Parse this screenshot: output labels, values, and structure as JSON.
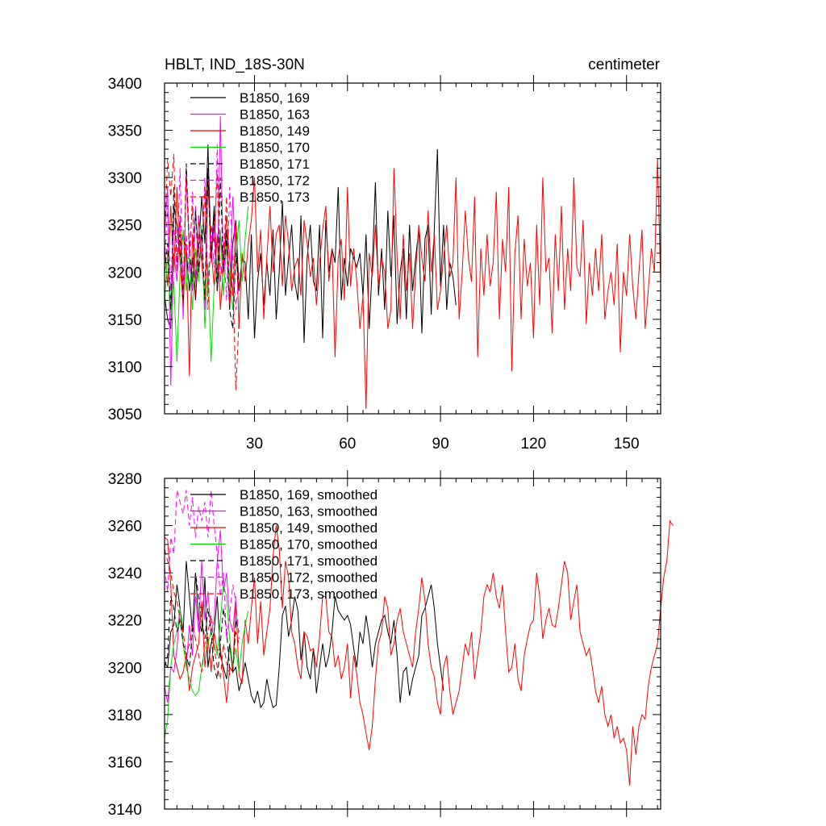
{
  "chart_data": [
    {
      "type": "line",
      "title": "HBLT, IND_18S-30N",
      "units": "centimeter",
      "xlabel": "",
      "ylabel": "",
      "xlim": [
        1,
        161
      ],
      "ylim": [
        3050,
        3400
      ],
      "x_ticks": [
        30,
        60,
        90,
        120,
        150
      ],
      "x_tick_labels": [
        "30",
        "60",
        "90",
        "120",
        "150"
      ],
      "y_ticks": [
        3050,
        3100,
        3150,
        3200,
        3250,
        3300,
        3350,
        3400
      ],
      "y_tick_labels": [
        "3050",
        "3100",
        "3150",
        "3200",
        "3250",
        "3300",
        "3350",
        "3400"
      ],
      "legend_position": "top-left",
      "series": [
        {
          "name": "B1850, 169",
          "label": "B1850, 169",
          "color": "#000000",
          "dash": "solid",
          "values": [
            3175,
            3150,
            3140,
            3270,
            3250,
            3215,
            3240,
            3225,
            3180,
            3215,
            3170,
            3225,
            3280,
            3230,
            3335,
            3215,
            3270,
            3180,
            3240,
            3210,
            3245,
            3160,
            3230,
            3255,
            3180,
            3215,
            3210,
            3150,
            3240,
            3130,
            3190,
            3220,
            3165,
            3210,
            3175,
            3245,
            3150,
            3200,
            3275,
            3175,
            3215,
            3250,
            3190,
            3170,
            3260,
            3125,
            3215,
            3250,
            3190,
            3180,
            3250,
            3130,
            3255,
            3200,
            3225,
            3210,
            3290,
            3170,
            3215,
            3185,
            3225,
            3215,
            3205,
            3220,
            3175,
            3240,
            3140,
            3205,
            3295,
            3175,
            3225,
            3160,
            3265,
            3195,
            3260,
            3145,
            3200,
            3225,
            3150,
            3250,
            3180,
            3215,
            3245,
            3135,
            3235,
            3250,
            3155,
            3245,
            3330,
            3185,
            3250,
            3160,
            3210,
            3195,
            3165
          ]
        },
        {
          "name": "B1850, 163",
          "label": "B1850, 163",
          "color": "#ff00ff",
          "dash": "solid",
          "values": [
            3240,
            3290,
            3080,
            3220,
            3190,
            3260,
            3150,
            3310,
            3220,
            3180,
            3270,
            3200,
            3240,
            3160,
            3300,
            3210,
            3250,
            3180,
            3365,
            3200,
            3230,
            3170,
            3280,
            3210
          ]
        },
        {
          "name": "B1850, 149",
          "label": "B1850, 149",
          "color": "#ff0000",
          "dash": "solid",
          "values": [
            3230,
            3185,
            3270,
            3200,
            3290,
            3210,
            3165,
            3230,
            3090,
            3240,
            3190,
            3260,
            3210,
            3170,
            3300,
            3225,
            3185,
            3240,
            3160,
            3205,
            3260,
            3215,
            3175,
            3250,
            3140,
            3220,
            3190,
            3230,
            3255,
            3300,
            3200,
            3245,
            3150,
            3215,
            3270,
            3200,
            3240,
            3250,
            3185,
            3260,
            3230,
            3180,
            3205,
            3215,
            3175,
            3255,
            3230,
            3195,
            3215,
            3165,
            3210,
            3245,
            3270,
            3190,
            3225,
            3110,
            3215,
            3235,
            3170,
            3290,
            3185,
            3225,
            3190,
            3140,
            3175,
            3055,
            3220,
            3195,
            3250,
            3185,
            3215,
            3200,
            3140,
            3160,
            3310,
            3215,
            3150,
            3240,
            3180,
            3220,
            3140,
            3200,
            3250,
            3215,
            3190,
            3265,
            3200,
            3240,
            3160,
            3180,
            3215,
            3250,
            3195,
            3210,
            3300,
            3150,
            3200,
            3265,
            3215,
            3190,
            3280,
            3110,
            3225,
            3175,
            3240,
            3185,
            3210,
            3285,
            3150,
            3235,
            3200,
            3290,
            3095,
            3220,
            3260,
            3150,
            3235,
            3185,
            3210,
            3130,
            3250,
            3165,
            3300,
            3200,
            3215,
            3135,
            3240,
            3180,
            3270,
            3160,
            3225,
            3180,
            3300,
            3205,
            3195,
            3255,
            3145,
            3210,
            3175,
            3225,
            3180,
            3240,
            3150,
            3180,
            3200,
            3165,
            3230,
            3115,
            3200,
            3175,
            3240,
            3185,
            3150,
            3200,
            3245,
            3140,
            3180,
            3225,
            3200,
            3320,
            3190
          ]
        },
        {
          "name": "B1850, 170",
          "label": "B1850, 170",
          "color": "#00dd00",
          "dash": "solid",
          "values": [
            3165,
            3220,
            3155,
            3190,
            3105,
            3200,
            3245,
            3180,
            3215,
            3160,
            3225,
            3190,
            3250,
            3140,
            3210,
            3105,
            3185,
            3200,
            3245,
            3175,
            3230,
            3195,
            3160,
            3215,
            3255,
            3190,
            3235,
            3270
          ]
        },
        {
          "name": "B1850, 171",
          "label": "B1850, 171",
          "color": "#000000",
          "dash": "dashed",
          "values": [
            3200,
            3230,
            3160,
            3290,
            3210,
            3240,
            3170,
            3315,
            3225,
            3190,
            3265,
            3200,
            3245,
            3170,
            3310,
            3215,
            3260,
            3180,
            3300,
            3200,
            3235,
            3160,
            3140,
            3220,
            3180
          ]
        },
        {
          "name": "B1850, 172",
          "label": "B1850, 172",
          "color": "#ff00ff",
          "dash": "dashed",
          "values": [
            3210,
            3270,
            3180,
            3250,
            3200,
            3310,
            3175,
            3240,
            3200,
            3285,
            3190,
            3260,
            3215,
            3300,
            3180,
            3245,
            3205,
            3335,
            3190,
            3230,
            3170,
            3290,
            3215,
            3160,
            3200
          ]
        },
        {
          "name": "B1850, 173",
          "label": "B1850, 173",
          "color": "#ff0000",
          "dash": "dashed",
          "values": [
            3240,
            3320,
            3280,
            3325,
            3200,
            3260,
            3180,
            3300,
            3220,
            3270,
            3175,
            3240,
            3210,
            3290,
            3160,
            3250,
            3230,
            3305,
            3190,
            3215,
            3280,
            3165,
            3200,
            3075,
            3150
          ]
        }
      ]
    },
    {
      "type": "line",
      "title": "",
      "xlabel": "",
      "ylabel": "",
      "xlim": [
        1,
        161
      ],
      "ylim": [
        3140,
        3280
      ],
      "x_ticks": [
        30,
        60,
        90,
        120,
        150
      ],
      "x_tick_labels": [],
      "y_ticks": [
        3140,
        3160,
        3180,
        3200,
        3220,
        3240,
        3260,
        3280
      ],
      "y_tick_labels": [
        "3140",
        "3160",
        "3180",
        "3200",
        "3220",
        "3240",
        "3260",
        "3280"
      ],
      "legend_position": "top-left",
      "series": [
        {
          "name": "B1850, 169, smoothed",
          "label": "B1850, 169, smoothed",
          "color": "#000000",
          "dash": "solid",
          "values": [
            3202,
            3200,
            3215,
            3218,
            3235,
            3225,
            3215,
            3245,
            3230,
            3215,
            3240,
            3220,
            3215,
            3238,
            3200,
            3210,
            3215,
            3230,
            3205,
            3200,
            3195,
            3210,
            3198,
            3200,
            3190,
            3195,
            3202,
            3195,
            3188,
            3185,
            3190,
            3183,
            3185,
            3195,
            3188,
            3183,
            3184,
            3200,
            3222,
            3226,
            3213,
            3220,
            3230,
            3224,
            3203,
            3215,
            3200,
            3195,
            3208,
            3189,
            3200,
            3210,
            3200,
            3205,
            3215,
            3230,
            3224,
            3222,
            3220,
            3222,
            3218,
            3208,
            3200,
            3215,
            3210,
            3222,
            3213,
            3200,
            3210,
            3215,
            3220,
            3222,
            3215,
            3210,
            3220,
            3205,
            3185,
            3198,
            3200,
            3188,
            3195,
            3200,
            3205,
            3222,
            3225,
            3230,
            3235,
            3225,
            3210,
            3200,
            3190
          ]
        },
        {
          "name": "B1850, 163, smoothed",
          "label": "B1850, 163, smoothed",
          "color": "#ff00ff",
          "dash": "solid",
          "values": [
            3192,
            3185,
            3200,
            3198,
            3208,
            3225,
            3210,
            3200,
            3218,
            3205,
            3230,
            3215,
            3245,
            3220,
            3232,
            3215,
            3220,
            3245,
            3258,
            3232,
            3240,
            3220,
            3215,
            3230
          ]
        },
        {
          "name": "B1850, 149, smoothed",
          "label": "B1850, 149, smoothed",
          "color": "#ff0000",
          "dash": "solid",
          "values": [
            3255,
            3254,
            3235,
            3205,
            3200,
            3195,
            3198,
            3205,
            3190,
            3200,
            3205,
            3210,
            3228,
            3200,
            3213,
            3198,
            3215,
            3207,
            3208,
            3197,
            3185,
            3200,
            3198,
            3228,
            3197,
            3193,
            3220,
            3210,
            3225,
            3238,
            3210,
            3228,
            3205,
            3215,
            3225,
            3247,
            3260,
            3250,
            3225,
            3245,
            3238,
            3215,
            3210,
            3200,
            3195,
            3215,
            3213,
            3207,
            3208,
            3200,
            3213,
            3230,
            3230,
            3215,
            3213,
            3200,
            3205,
            3195,
            3200,
            3210,
            3187,
            3205,
            3197,
            3185,
            3180,
            3172,
            3165,
            3175,
            3195,
            3210,
            3215,
            3230,
            3225,
            3205,
            3210,
            3220,
            3225,
            3215,
            3210,
            3205,
            3200,
            3215,
            3225,
            3238,
            3228,
            3210,
            3200,
            3196,
            3185,
            3180,
            3200,
            3205,
            3190,
            3180,
            3185,
            3190,
            3200,
            3210,
            3205,
            3215,
            3195,
            3205,
            3215,
            3230,
            3235,
            3232,
            3240,
            3230,
            3225,
            3235,
            3215,
            3198,
            3200,
            3210,
            3195,
            3190,
            3205,
            3212,
            3218,
            3220,
            3240,
            3230,
            3212,
            3220,
            3225,
            3218,
            3217,
            3225,
            3235,
            3245,
            3240,
            3220,
            3228,
            3235,
            3215,
            3210,
            3205,
            3208,
            3200,
            3190,
            3185,
            3192,
            3180,
            3175,
            3180,
            3170,
            3175,
            3168,
            3170,
            3165,
            3150,
            3175,
            3163,
            3175,
            3180,
            3178,
            3192,
            3200,
            3205,
            3210,
            3225,
            3238,
            3245,
            3262,
            3260
          ]
        },
        {
          "name": "B1850, 170, smoothed",
          "label": "B1850, 170, smoothed",
          "color": "#00dd00",
          "dash": "solid",
          "values": [
            3170,
            3178,
            3200,
            3210,
            3215,
            3225,
            3210,
            3200,
            3195,
            3190,
            3188,
            3190,
            3200,
            3208,
            3210,
            3215,
            3210,
            3205,
            3220,
            3235,
            3230,
            3212,
            3200,
            3208,
            3198,
            3210,
            3218,
            3224
          ]
        },
        {
          "name": "B1850, 171, smoothed",
          "label": "B1850, 171, smoothed",
          "color": "#000000",
          "dash": "dashed",
          "values": [
            3200,
            3205,
            3230,
            3225,
            3215,
            3220,
            3210,
            3205,
            3200,
            3215,
            3240,
            3230,
            3220,
            3212,
            3225,
            3215,
            3200,
            3195,
            3210,
            3225,
            3215,
            3200,
            3198,
            3220,
            3215
          ]
        },
        {
          "name": "B1850, 172, smoothed",
          "label": "B1850, 172, smoothed",
          "color": "#ff00ff",
          "dash": "dashed",
          "values": [
            3242,
            3232,
            3255,
            3248,
            3275,
            3270,
            3265,
            3275,
            3260,
            3272,
            3255,
            3268,
            3262,
            3270,
            3255,
            3275,
            3260,
            3248,
            3230,
            3240,
            3212,
            3222,
            3235,
            3228,
            3212
          ]
        },
        {
          "name": "B1850, 173, smoothed",
          "label": "B1850, 173, smoothed",
          "color": "#ff0000",
          "dash": "dashed",
          "values": [
            3250,
            3245,
            3240,
            3232,
            3228,
            3220,
            3215,
            3205,
            3210,
            3218,
            3212,
            3205,
            3198,
            3210,
            3215,
            3222,
            3208,
            3200,
            3195,
            3210,
            3202,
            3197,
            3200,
            3215,
            3210
          ]
        }
      ]
    }
  ]
}
